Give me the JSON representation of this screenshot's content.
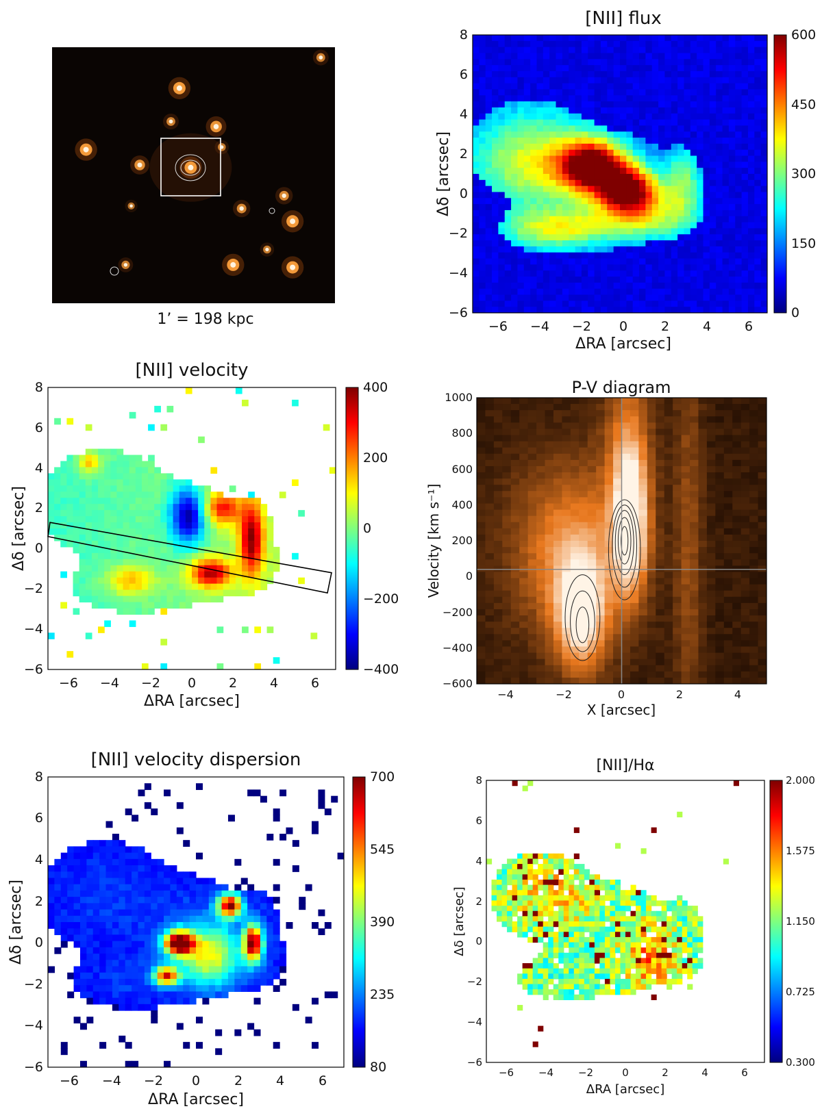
{
  "colors": {
    "jet": [
      "#00007f",
      "#0000ff",
      "#007fff",
      "#00ffff",
      "#7fff7f",
      "#ffff00",
      "#ff7f00",
      "#ff0000",
      "#7f0000"
    ],
    "optical_bg": "#0a0503",
    "pv_low": "#1a0a02",
    "pv_high": "#fff4e6"
  },
  "chart_data": [
    {
      "id": "optical",
      "type": "image",
      "title": "",
      "caption": "1’ = 198 kpc",
      "sources": [
        {
          "x": 0.45,
          "y": 0.16,
          "b": 1.0
        },
        {
          "x": 0.12,
          "y": 0.4,
          "b": 1.0
        },
        {
          "x": 0.58,
          "y": 0.31,
          "b": 0.9
        },
        {
          "x": 0.42,
          "y": 0.29,
          "b": 0.6
        },
        {
          "x": 0.31,
          "y": 0.46,
          "b": 0.8
        },
        {
          "x": 0.49,
          "y": 0.47,
          "b": 1.0
        },
        {
          "x": 0.82,
          "y": 0.58,
          "b": 0.7
        },
        {
          "x": 0.85,
          "y": 0.68,
          "b": 1.0
        },
        {
          "x": 0.67,
          "y": 0.63,
          "b": 0.7
        },
        {
          "x": 0.26,
          "y": 0.85,
          "b": 0.55
        },
        {
          "x": 0.64,
          "y": 0.85,
          "b": 1.0
        },
        {
          "x": 0.85,
          "y": 0.86,
          "b": 1.0
        },
        {
          "x": 0.95,
          "y": 0.04,
          "b": 0.6
        },
        {
          "x": 0.28,
          "y": 0.62,
          "b": 0.4
        },
        {
          "x": 0.76,
          "y": 0.79,
          "b": 0.5
        },
        {
          "x": 0.6,
          "y": 0.39,
          "b": 0.5
        }
      ]
    },
    {
      "id": "flux",
      "type": "heatmap",
      "title": "[NII] flux",
      "xlabel": "ΔRA [arcsec]",
      "ylabel": "Δδ [arcsec]",
      "xlim": [
        -7,
        7
      ],
      "ylim": [
        -6,
        8
      ],
      "xticks": [
        "−6",
        "−4",
        "−2",
        "0",
        "2",
        "4",
        "6"
      ],
      "yticks": [
        "−6",
        "−4",
        "−2",
        "0",
        "2",
        "4",
        "6",
        "8"
      ],
      "colorbar": {
        "min": 0,
        "max": 600,
        "ticks": [
          "0",
          "150",
          "300",
          "450",
          "600"
        ]
      },
      "background": 0.1,
      "components": [
        {
          "x": -4.0,
          "y": 1.6,
          "sx": 2.2,
          "sy": 1.8,
          "v": 0.38
        },
        {
          "x": -3.0,
          "y": -1.8,
          "sx": 1.8,
          "sy": 0.7,
          "v": 0.34
        },
        {
          "x": 1.2,
          "y": -1.2,
          "sx": 1.8,
          "sy": 0.8,
          "v": 0.32
        },
        {
          "x": 3.0,
          "y": 0.6,
          "sx": 0.6,
          "sy": 1.2,
          "v": 0.28
        },
        {
          "x": -1.3,
          "y": 1.4,
          "sx": 1.1,
          "sy": 0.9,
          "v": 0.78
        },
        {
          "x": 0.4,
          "y": 0.2,
          "sx": 1.0,
          "sy": 0.8,
          "v": 0.78
        }
      ]
    },
    {
      "id": "velocity",
      "type": "heatmap",
      "title": "[NII] velocity",
      "xlabel": "ΔRA [arcsec]",
      "ylabel": "Δδ [arcsec]",
      "xlim": [
        -7,
        7
      ],
      "ylim": [
        -6,
        8
      ],
      "xticks": [
        "−6",
        "−4",
        "−2",
        "0",
        "2",
        "4",
        "6"
      ],
      "yticks": [
        "−6",
        "−4",
        "−2",
        "0",
        "2",
        "4",
        "6",
        "8"
      ],
      "colorbar": {
        "min": -400,
        "max": 400,
        "ticks": [
          "−400",
          "−200",
          "0",
          "200",
          "400"
        ]
      },
      "slit": {
        "corners": [
          [
            -6.9,
            1.3
          ],
          [
            6.8,
            -1.2
          ],
          [
            6.6,
            -2.2
          ],
          [
            -7.0,
            0.6
          ]
        ]
      },
      "components": [
        {
          "x": -0.2,
          "y": 1.6,
          "sx": 0.6,
          "sy": 1.0,
          "v": -0.9
        },
        {
          "x": 1.5,
          "y": 2.0,
          "sx": 0.6,
          "sy": 0.6,
          "v": 0.7
        },
        {
          "x": 2.9,
          "y": 0.5,
          "sx": 0.4,
          "sy": 1.3,
          "v": 0.95
        },
        {
          "x": 0.9,
          "y": -1.2,
          "sx": 0.7,
          "sy": 0.5,
          "v": 0.9
        },
        {
          "x": -3.0,
          "y": -1.6,
          "sx": 0.8,
          "sy": 0.5,
          "v": 0.45
        },
        {
          "x": -5.0,
          "y": 4.3,
          "sx": 0.4,
          "sy": 0.4,
          "v": 0.45
        }
      ]
    },
    {
      "id": "pv",
      "type": "heatmap",
      "title": "P-V diagram",
      "xlabel": "X [arcsec]",
      "ylabel": "Velocity [km s⁻¹]",
      "xlim": [
        -5,
        5
      ],
      "ylim": [
        -600,
        1000
      ],
      "xticks": [
        "−4",
        "−2",
        "0",
        "2",
        "4"
      ],
      "yticks": [
        "−600",
        "−400",
        "−200",
        "0",
        "200",
        "400",
        "600",
        "800",
        "1000"
      ],
      "crosshair": {
        "x": 0,
        "y": 40
      },
      "components": [
        {
          "x": 0.3,
          "y": 300,
          "sx": 0.4,
          "sy": 280,
          "v": 1.0
        },
        {
          "x": -1.4,
          "y": -200,
          "sx": 0.6,
          "sy": 220,
          "v": 0.95
        },
        {
          "x": -1.8,
          "y": 150,
          "sx": 1.4,
          "sy": 330,
          "v": 0.55
        },
        {
          "x": 0.2,
          "y": 700,
          "sx": 0.6,
          "sy": 400,
          "v": 0.4
        },
        {
          "x": 2.3,
          "y": 200,
          "sx": 0.35,
          "sy": 800,
          "v": 0.25
        }
      ],
      "contours": [
        {
          "cx": 0.1,
          "cy": 150,
          "rx": 0.55,
          "ry": 280
        },
        {
          "cx": 0.1,
          "cy": 170,
          "rx": 0.42,
          "ry": 230
        },
        {
          "cx": 0.1,
          "cy": 190,
          "rx": 0.32,
          "ry": 180
        },
        {
          "cx": 0.1,
          "cy": 200,
          "rx": 0.22,
          "ry": 130
        },
        {
          "cx": 0.1,
          "cy": 200,
          "rx": 0.12,
          "ry": 80
        },
        {
          "cx": -1.35,
          "cy": -230,
          "rx": 0.6,
          "ry": 240
        },
        {
          "cx": -1.35,
          "cy": -250,
          "rx": 0.42,
          "ry": 170
        },
        {
          "cx": -1.35,
          "cy": -270,
          "rx": 0.22,
          "ry": 100
        }
      ]
    },
    {
      "id": "dispersion",
      "type": "heatmap",
      "title": "[NII] velocity dispersion",
      "xlabel": "ΔRA [arcsec]",
      "ylabel": "Δδ [arcsec]",
      "xlim": [
        -7,
        7
      ],
      "ylim": [
        -6,
        8
      ],
      "xticks": [
        "−6",
        "−4",
        "−2",
        "0",
        "2",
        "4",
        "6"
      ],
      "yticks": [
        "−6",
        "−4",
        "−2",
        "0",
        "2",
        "4",
        "6",
        "8"
      ],
      "colorbar": {
        "min": 80,
        "max": 700,
        "ticks": [
          "80",
          "235",
          "390",
          "545",
          "700"
        ]
      },
      "components": [
        {
          "x": -0.8,
          "y": 0.0,
          "sx": 0.5,
          "sy": 0.4,
          "v": 0.9
        },
        {
          "x": 1.6,
          "y": 1.8,
          "sx": 0.4,
          "sy": 0.4,
          "v": 0.85
        },
        {
          "x": 2.7,
          "y": 0.0,
          "sx": 0.3,
          "sy": 0.6,
          "v": 0.85
        },
        {
          "x": 0.6,
          "y": -0.6,
          "sx": 1.0,
          "sy": 1.0,
          "v": 0.45
        },
        {
          "x": -1.4,
          "y": -1.6,
          "sx": 0.4,
          "sy": 0.3,
          "v": 0.7
        }
      ]
    },
    {
      "id": "ratio",
      "type": "heatmap",
      "title": "[NII]/Hα",
      "xlabel": "ΔRA [arcsec]",
      "ylabel": "Δδ [arcsec]",
      "xlim": [
        -7,
        7
      ],
      "ylim": [
        -6,
        8
      ],
      "xticks": [
        "−6",
        "−4",
        "−2",
        "0",
        "2",
        "4",
        "6"
      ],
      "yticks": [
        "−6",
        "−4",
        "−2",
        "0",
        "2",
        "4",
        "6",
        "8"
      ],
      "colorbar": {
        "min": 0.3,
        "max": 2.0,
        "ticks": [
          "0.300",
          "0.725",
          "1.150",
          "1.575",
          "2.000"
        ]
      },
      "components": [
        {
          "x": 1.2,
          "y": -0.8,
          "sx": 1.0,
          "sy": 1.2,
          "v": 0.72
        },
        {
          "x": -3.5,
          "y": 2.5,
          "sx": 1.6,
          "sy": 1.3,
          "v": 0.5
        }
      ]
    }
  ]
}
